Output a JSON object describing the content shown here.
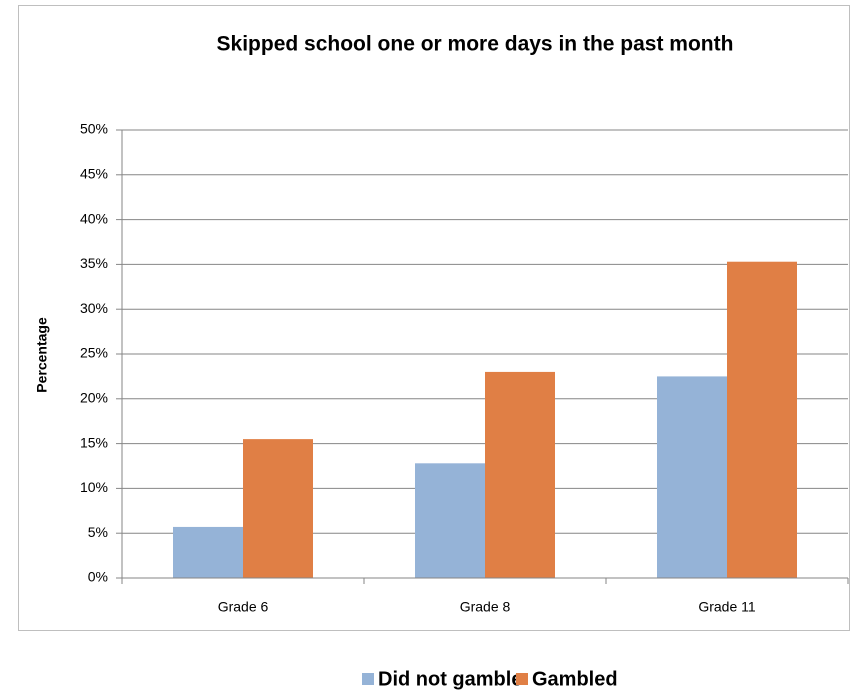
{
  "chart_data": {
    "type": "bar",
    "title": "Skipped school one or more days in the past month",
    "y_label": "Percentage",
    "categories": [
      "Grade 6",
      "Grade 8",
      "Grade 11"
    ],
    "series": [
      {
        "name": "Did not gamble",
        "color": "#95b3d7",
        "values": [
          5.7,
          12.8,
          22.5
        ]
      },
      {
        "name": "Gambled",
        "color": "#e07f45",
        "values": [
          15.5,
          23,
          35.3
        ]
      }
    ],
    "ylim": [
      0,
      50
    ],
    "yticks": [
      {
        "value": 0,
        "label": "0%"
      },
      {
        "value": 5,
        "label": "5%"
      },
      {
        "value": 10,
        "label": "10%"
      },
      {
        "value": 15,
        "label": "15%"
      },
      {
        "value": 20,
        "label": "20%"
      },
      {
        "value": 25,
        "label": "25%"
      },
      {
        "value": 30,
        "label": "30%"
      },
      {
        "value": 35,
        "label": "35%"
      },
      {
        "value": 40,
        "label": "40%"
      },
      {
        "value": 45,
        "label": "45%"
      },
      {
        "value": 50,
        "label": "50%"
      }
    ],
    "grid": true,
    "legend": "bottom"
  }
}
